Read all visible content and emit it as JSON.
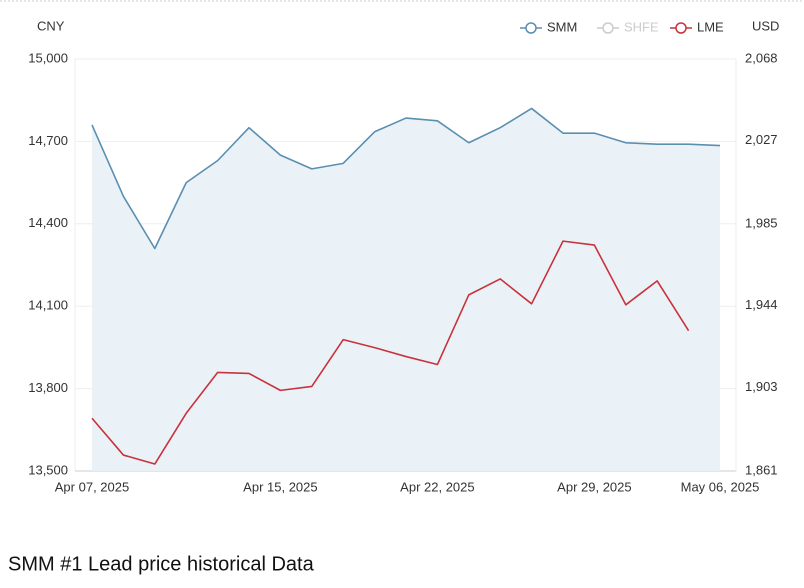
{
  "chart_data": {
    "type": "line",
    "title": "SMM #1 Lead price historical Data",
    "y_label": "CNY",
    "y2_label": "USD",
    "categories": [
      "Apr 07, 2025",
      null,
      null,
      null,
      null,
      null,
      "Apr 15, 2025",
      null,
      null,
      null,
      null,
      "Apr 22, 2025",
      null,
      null,
      null,
      null,
      "Apr 29, 2025",
      null,
      null,
      null,
      "May 06, 2025"
    ],
    "series": [
      {
        "name": "SMM",
        "color": "#5b8fb0",
        "area": true,
        "values": [
          14760,
          14500,
          14310,
          14550,
          14630,
          14750,
          14650,
          14600,
          14620,
          14735,
          14785,
          14775,
          14695,
          14750,
          14820,
          14730,
          14730,
          14695,
          14690,
          14690,
          14685
        ]
      },
      {
        "name": "SHFE",
        "color": "#cccccc",
        "hidden": true,
        "values": [
          null,
          null,
          null,
          null,
          null,
          null,
          null,
          null,
          null,
          null,
          null,
          null,
          null,
          null,
          null,
          null,
          null,
          null,
          null,
          null,
          null
        ]
      },
      {
        "name": "LME",
        "color": "#c8323c",
        "axis": "y2",
        "values": [
          1887.5,
          1869,
          1864.5,
          1890,
          1910.5,
          1910,
          1901.5,
          1903.5,
          1927,
          1923,
          1918.5,
          1914.5,
          1949.5,
          1957.5,
          1945,
          1976.5,
          1974.5,
          1944.5,
          1956.5,
          1931.5,
          null
        ]
      }
    ],
    "ylim": [
      13500,
      15000
    ],
    "yticks": [
      {
        "value": 13500,
        "label": "13,500"
      },
      {
        "value": 13800,
        "label": "13,800"
      },
      {
        "value": 14100,
        "label": "14,100"
      },
      {
        "value": 14400,
        "label": "14,400"
      },
      {
        "value": 14700,
        "label": "14,700"
      },
      {
        "value": 15000,
        "label": "15,000"
      }
    ],
    "y2lim": [
      1861,
      2068
    ],
    "y2ticks": [
      {
        "value": 1861,
        "label": "1,861"
      },
      {
        "value": 1903,
        "label": "1,903"
      },
      {
        "value": 1944,
        "label": "1,944"
      },
      {
        "value": 1985,
        "label": "1,985"
      },
      {
        "value": 2027,
        "label": "2,027"
      },
      {
        "value": 2068,
        "label": "2,068"
      }
    ],
    "grid": true,
    "legend": "top-right"
  }
}
